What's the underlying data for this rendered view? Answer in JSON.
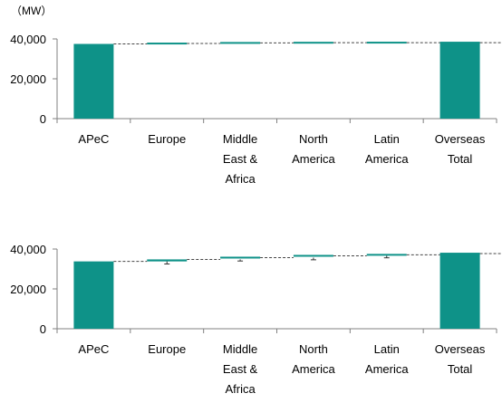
{
  "unit_label": "（MW）",
  "chart_data": [
    {
      "type": "bar",
      "subtype": "waterfall",
      "categories": [
        [
          "APeC"
        ],
        [
          "Europe"
        ],
        [
          "Middle",
          "East &",
          "Africa"
        ],
        [
          "North",
          "America"
        ],
        [
          "Latin",
          "America"
        ],
        [
          "Overseas",
          "Total"
        ]
      ],
      "start_value": 37500,
      "increments": [
        200,
        300,
        100,
        50,
        0
      ],
      "total_value": 38200,
      "ylim": [
        0,
        40000
      ],
      "yticks": [
        "0",
        "20,000",
        "40,000"
      ],
      "ytick_values": [
        0,
        20000,
        40000
      ],
      "grid": false,
      "colors": {
        "bar": "#0e9288",
        "axis": "#808080",
        "connector": "#444444"
      }
    },
    {
      "type": "bar",
      "subtype": "waterfall",
      "categories": [
        [
          "APeC"
        ],
        [
          "Europe"
        ],
        [
          "Middle",
          "East &",
          "Africa"
        ],
        [
          "North",
          "America"
        ],
        [
          "Latin",
          "America"
        ],
        [
          "Overseas",
          "Total"
        ]
      ],
      "start_value": 33800,
      "increments": [
        1000,
        900,
        900,
        500,
        600
      ],
      "total_value": 37600,
      "error_low": [
        null,
        32500,
        34000,
        34600,
        35600,
        null
      ],
      "ylim": [
        0,
        40000
      ],
      "yticks": [
        "0",
        "20,000",
        "40,000"
      ],
      "ytick_values": [
        0,
        20000,
        40000
      ],
      "grid": false,
      "colors": {
        "bar": "#0e9288",
        "axis": "#808080",
        "connector": "#444444"
      }
    }
  ]
}
